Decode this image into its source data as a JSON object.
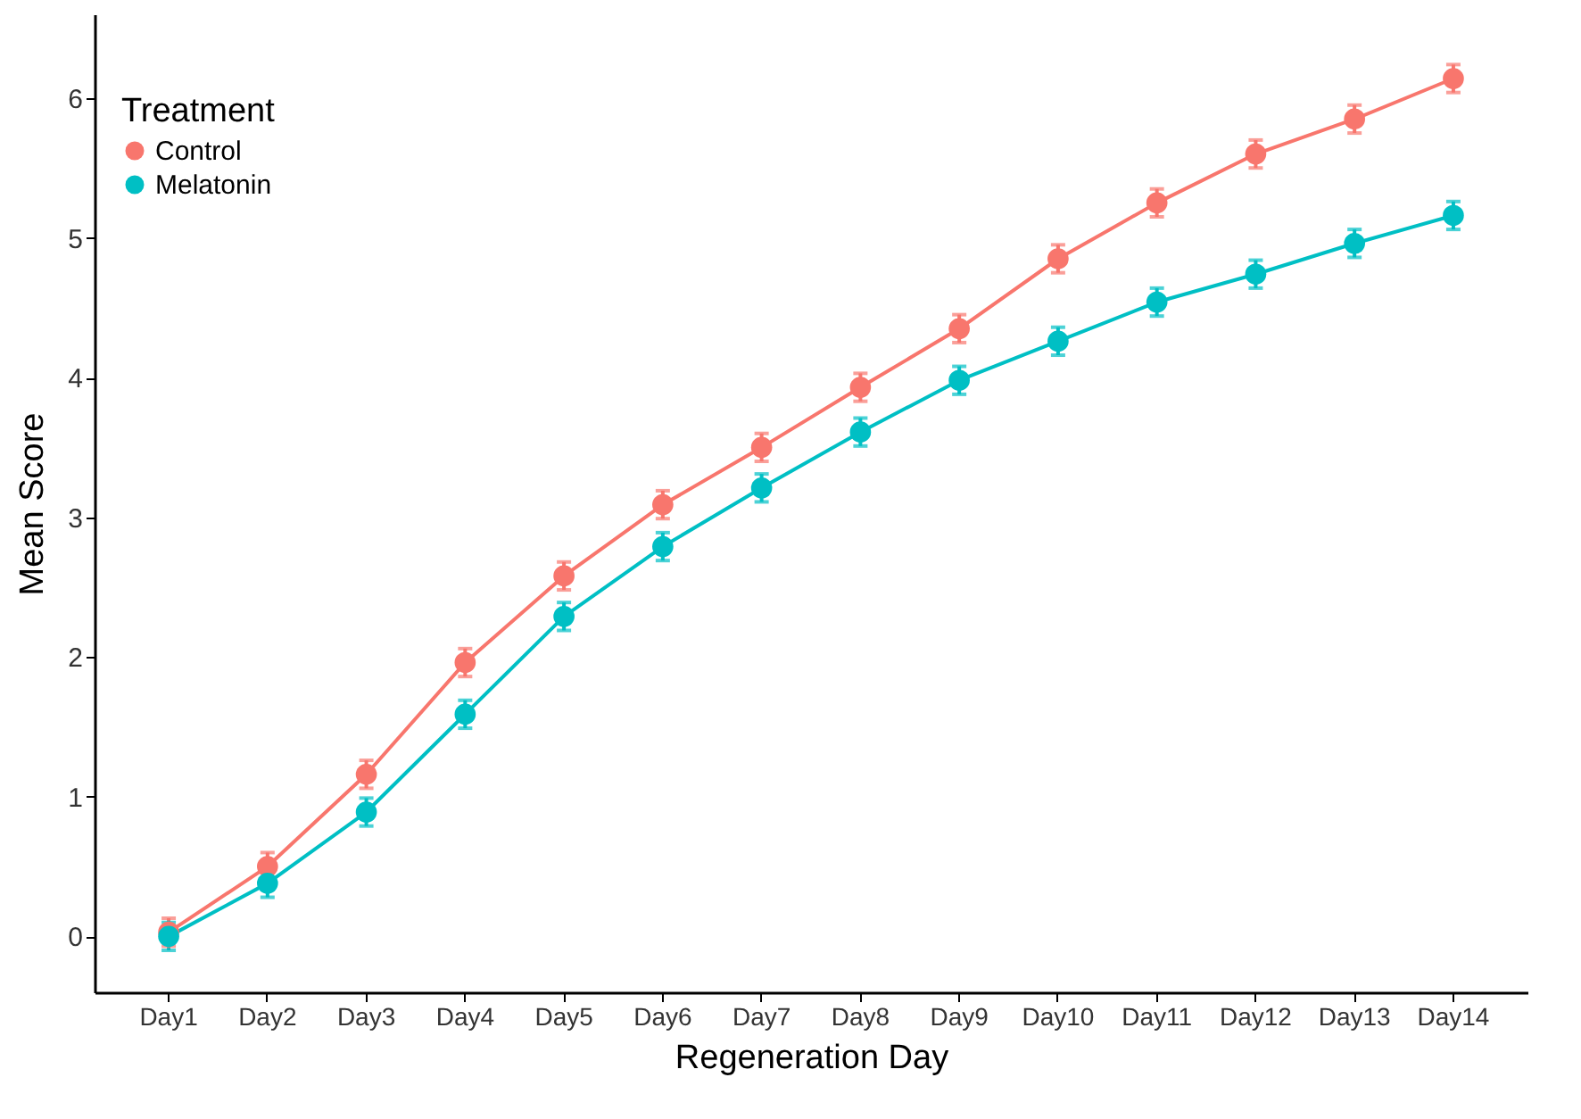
{
  "chart_data": {
    "type": "line",
    "xlabel": "Regeneration Day",
    "ylabel": "Mean Score",
    "legend_title": "Treatment",
    "categories": [
      "Day1",
      "Day2",
      "Day3",
      "Day4",
      "Day5",
      "Day6",
      "Day7",
      "Day8",
      "Day9",
      "Day10",
      "Day11",
      "Day12",
      "Day13",
      "Day14"
    ],
    "series": [
      {
        "name": "Control",
        "color": "#f8766d",
        "values": [
          0.03,
          0.5,
          1.16,
          1.96,
          2.58,
          3.09,
          3.5,
          3.93,
          4.35,
          4.85,
          5.25,
          5.6,
          5.85,
          6.14
        ],
        "errors": [
          0.1,
          0.1,
          0.1,
          0.1,
          0.1,
          0.1,
          0.1,
          0.1,
          0.1,
          0.1,
          0.1,
          0.1,
          0.1,
          0.1
        ]
      },
      {
        "name": "Melatonin",
        "color": "#00bfc4",
        "values": [
          0.0,
          0.38,
          0.89,
          1.59,
          2.29,
          2.79,
          3.21,
          3.61,
          3.98,
          4.26,
          4.54,
          4.74,
          4.96,
          5.16
        ],
        "errors": [
          0.1,
          0.1,
          0.1,
          0.1,
          0.1,
          0.1,
          0.1,
          0.1,
          0.1,
          0.1,
          0.1,
          0.1,
          0.1,
          0.1
        ]
      }
    ],
    "ylim": [
      -0.4,
      6.6
    ],
    "yticks": [
      0,
      1,
      2,
      3,
      4,
      5,
      6
    ],
    "grid": false,
    "legend": "top left",
    "marker": "circle",
    "line_style": "solid"
  }
}
